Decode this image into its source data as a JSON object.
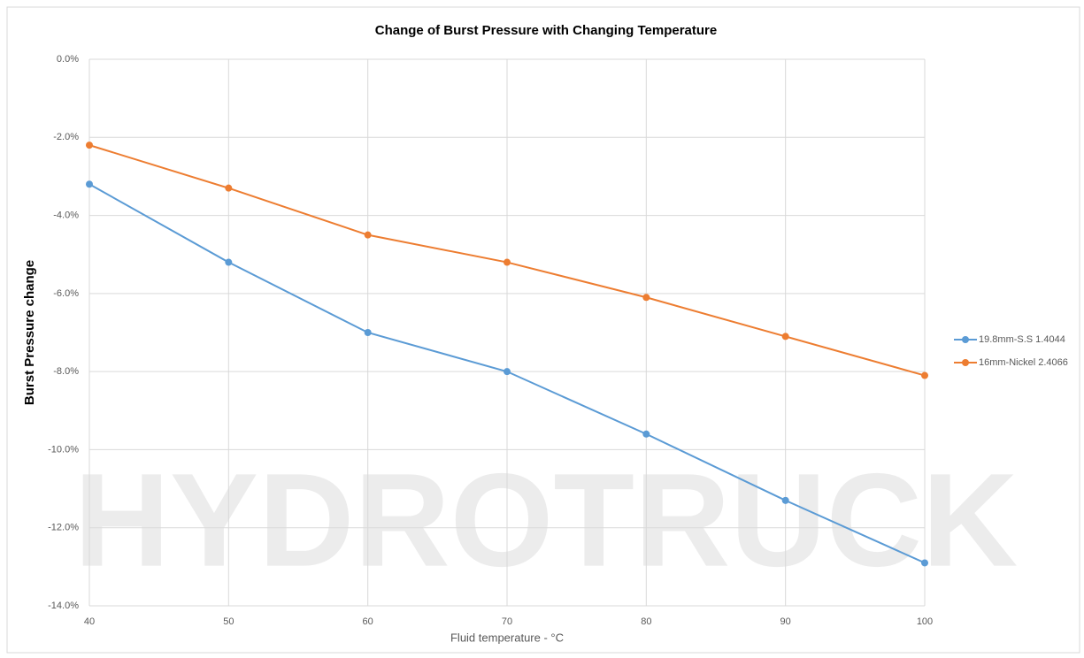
{
  "chart_data": {
    "type": "line",
    "title": "Change of Burst Pressure with Changing Temperature",
    "x_label": "Fluid temperature - °C",
    "y_label": "Burst Pressure change",
    "watermark": "HYDROTRUCK",
    "x": [
      40,
      50,
      60,
      70,
      80,
      90,
      100
    ],
    "series": [
      {
        "name": "19.8mm-S.S 1.4044",
        "color": "#5b9bd5",
        "values": [
          -3.2,
          -5.2,
          -7.0,
          -8.0,
          -9.6,
          -11.3,
          -12.9
        ]
      },
      {
        "name": "16mm-Nickel 2.4066",
        "color": "#ed7d31",
        "values": [
          -2.2,
          -3.3,
          -4.5,
          -5.2,
          -6.1,
          -7.1,
          -8.1
        ]
      }
    ],
    "xlim": [
      40,
      100
    ],
    "xticks": [
      40,
      50,
      60,
      70,
      80,
      90,
      100
    ],
    "ylim": [
      -14,
      0
    ],
    "yticks": [
      {
        "value": 0,
        "label": "0.0%"
      },
      {
        "value": -2,
        "label": "-2.0%"
      },
      {
        "value": -4,
        "label": "-4.0%"
      },
      {
        "value": -6,
        "label": "-6.0%"
      },
      {
        "value": -8,
        "label": "-8.0%"
      },
      {
        "value": -10,
        "label": "-10.0%"
      },
      {
        "value": -12,
        "label": "-12.0%"
      },
      {
        "value": -14,
        "label": "-14.0%"
      }
    ],
    "grid": true,
    "legend": "right"
  }
}
